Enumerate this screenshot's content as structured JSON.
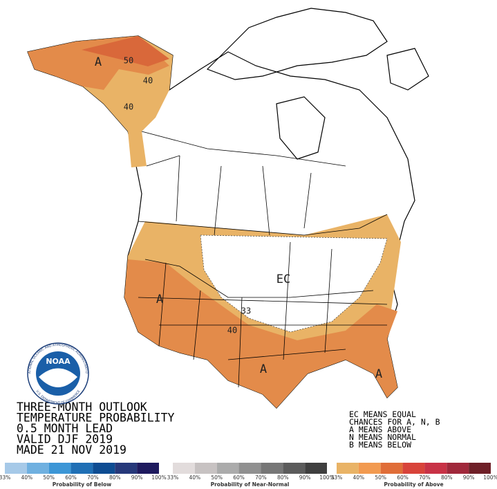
{
  "outlook_text": [
    "THREE-MONTH OUTLOOK",
    "TEMPERATURE PROBABILITY",
    "0.5 MONTH LEAD",
    "VALID DJF 2019",
    "MADE 21 NOV 2019"
  ],
  "key_text": [
    "EC MEANS EQUAL",
    "CHANCES FOR A, N, B",
    "A MEANS ABOVE",
    "N MEANS NORMAL",
    "B MEANS BELOW"
  ],
  "logo": {
    "name": "NOAA",
    "ring_top": "NATIONAL OCEANIC AND ATMOSPHERIC ADMINISTRATION",
    "ring_bottom": "U.S. DEPARTMENT OF COMMERCE"
  },
  "map_labels": [
    "A",
    "50",
    "40",
    "40",
    "EC",
    "33",
    "40",
    "A",
    "A",
    "A"
  ],
  "legends": [
    {
      "caption": "Probability of Below",
      "colors": [
        "#a6c9e8",
        "#6fb0e0",
        "#3c96d6",
        "#1f6fb5",
        "#0d4c92",
        "#26387a",
        "#1e1a5e"
      ],
      "ticks": [
        "33%",
        "40%",
        "50%",
        "60%",
        "70%",
        "80%",
        "90%",
        "100%"
      ]
    },
    {
      "caption": "Probability of Near-Normal",
      "colors": [
        "#e2dcdc",
        "#c7c2c2",
        "#ababab",
        "#909090",
        "#767676",
        "#5b5b5b",
        "#3f3f3f"
      ],
      "ticks": [
        "33%",
        "40%",
        "50%",
        "60%",
        "70%",
        "80%",
        "90%",
        "100%"
      ]
    },
    {
      "caption": "Probability of Above",
      "colors": [
        "#e9b366",
        "#f29a50",
        "#e06d38",
        "#d8433a",
        "#c83246",
        "#a0283b",
        "#6e1f27"
      ],
      "ticks": [
        "33%",
        "40%",
        "50%",
        "60%",
        "70%",
        "80%",
        "90%",
        "100%"
      ]
    }
  ]
}
